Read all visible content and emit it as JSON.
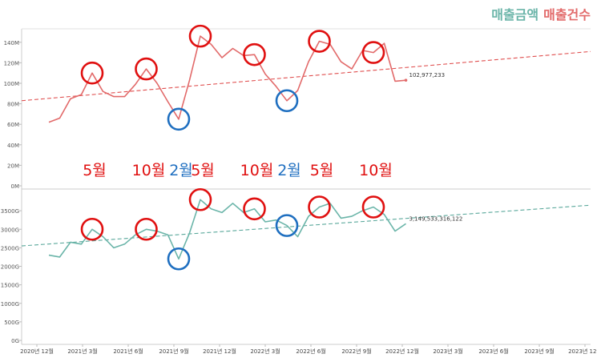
{
  "legend": {
    "amount_label": "매출금액",
    "count_label": "매출건수",
    "amount_color": "#6bb5a9",
    "count_color": "#e26a6a"
  },
  "chart_data": [
    {
      "type": "line",
      "series": [
        {
          "name": "매출건수",
          "color": "#e26a6a",
          "values": [
            62,
            66,
            85,
            89,
            110,
            92,
            87,
            87,
            99,
            114,
            100,
            82,
            65,
            103,
            146,
            138,
            125,
            134,
            127,
            128,
            109,
            97,
            83,
            93,
            121,
            141,
            138,
            121,
            114,
            132,
            130,
            139,
            102,
            103
          ]
        }
      ],
      "ylim": [
        0,
        150
      ],
      "yticks": [
        "0M",
        "20M",
        "40M",
        "60M",
        "80M",
        "100M",
        "120M",
        "140M"
      ],
      "trendline": {
        "start": 83,
        "end": 131,
        "color": "#e05050"
      },
      "end_label": "102,977,233",
      "highlights": [
        {
          "index": 4,
          "color": "red"
        },
        {
          "index": 9,
          "color": "red"
        },
        {
          "index": 12,
          "color": "blue"
        },
        {
          "index": 14,
          "color": "red"
        },
        {
          "index": 19,
          "color": "red"
        },
        {
          "index": 22,
          "color": "blue"
        },
        {
          "index": 25,
          "color": "red"
        },
        {
          "index": 30,
          "color": "red"
        }
      ]
    },
    {
      "type": "line",
      "series": [
        {
          "name": "매출금액",
          "color": "#6bb5a9",
          "values": [
            2300,
            2250,
            2650,
            2600,
            3000,
            2800,
            2500,
            2600,
            2850,
            3000,
            2950,
            2850,
            2200,
            2900,
            3800,
            3550,
            3450,
            3700,
            3450,
            3550,
            3200,
            3250,
            3100,
            2800,
            3350,
            3600,
            3700,
            3300,
            3350,
            3500,
            3600,
            3400,
            2950,
            3150
          ]
        }
      ],
      "ylim": [
        0,
        4000
      ],
      "yticks": [
        "0G",
        "500G",
        "1000G",
        "1500G",
        "2000G",
        "2500G",
        "3000G",
        "3500G"
      ],
      "trendline": {
        "start": 2550,
        "end": 3650,
        "color": "#5aa89b"
      },
      "end_label": "3,149,533,316,122",
      "highlights": [
        {
          "index": 4,
          "color": "red"
        },
        {
          "index": 9,
          "color": "red"
        },
        {
          "index": 12,
          "color": "blue"
        },
        {
          "index": 14,
          "color": "red"
        },
        {
          "index": 19,
          "color": "red"
        },
        {
          "index": 22,
          "color": "blue"
        },
        {
          "index": 25,
          "color": "red"
        },
        {
          "index": 30,
          "color": "red"
        }
      ]
    }
  ],
  "x_labels": [
    "2020년 12월",
    "2021년 3월",
    "2021년 6월",
    "2021년 9월",
    "2021년 12월",
    "2022년 3월",
    "2022년 6월",
    "2022년 9월",
    "2022년 12월",
    "2023년 3월",
    "2023년 6월",
    "2023년 9월",
    "2023년 12월"
  ],
  "x_label_indices": [
    0,
    3,
    6,
    9,
    12,
    15,
    18,
    21,
    24,
    27,
    30,
    33,
    36
  ],
  "month_annotations": [
    {
      "text": "5월",
      "color": "red"
    },
    {
      "text": "10월",
      "color": "red"
    },
    {
      "text": "2월",
      "color": "blue"
    },
    {
      "text": "5월",
      "color": "red"
    },
    {
      "text": "10월",
      "color": "red"
    },
    {
      "text": "2월",
      "color": "blue"
    },
    {
      "text": "5월",
      "color": "red"
    },
    {
      "text": "10월",
      "color": "red"
    }
  ]
}
